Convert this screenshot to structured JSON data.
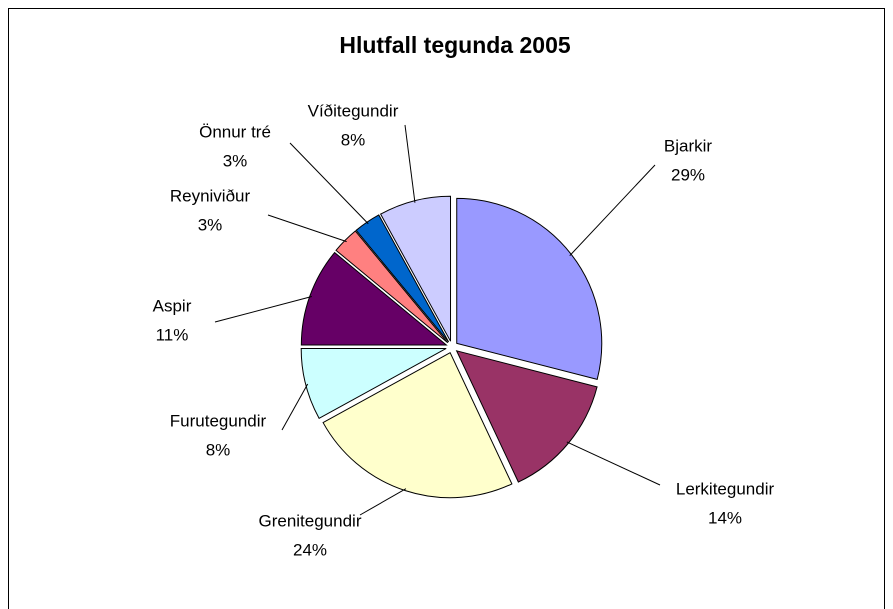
{
  "chart_data": {
    "type": "pie",
    "title": "Hlutfall tegunda 2005",
    "categories": [
      "Bjarkir",
      "Lerkitegundir",
      "Grenitegundir",
      "Furutegundir",
      "Aspir",
      "Reyniviður",
      "Önnur tré",
      "Víðitegundir"
    ],
    "values": [
      29,
      14,
      24,
      8,
      11,
      3,
      3,
      8
    ],
    "value_labels": [
      "29%",
      "14%",
      "24%",
      "8%",
      "11%",
      "3%",
      "3%",
      "8%"
    ],
    "colors": [
      "#9999ff",
      "#993366",
      "#ffffcc",
      "#ccffff",
      "#660066",
      "#ff8080",
      "#0066cc",
      "#ccccff"
    ]
  }
}
